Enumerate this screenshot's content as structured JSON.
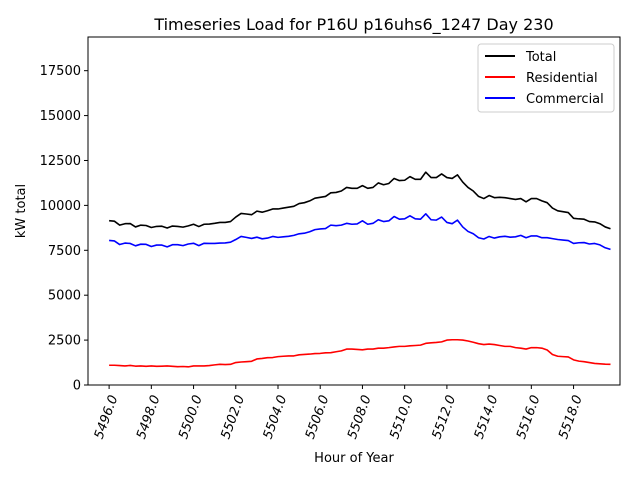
{
  "chart_data": {
    "type": "line",
    "title": "Timeseries Load for P16U p16uhs6_1247  Day 230",
    "xlabel": "Hour of Year",
    "ylabel": "kW total",
    "xlim": [
      5495.0,
      5520.2
    ],
    "ylim": [
      0,
      19375
    ],
    "xticks": [
      5496,
      5498,
      5500,
      5502,
      5504,
      5506,
      5508,
      5510,
      5512,
      5514,
      5516,
      5518
    ],
    "xtick_labels": [
      "5496.0",
      "5498.0",
      "5500.0",
      "5502.0",
      "5504.0",
      "5506.0",
      "5508.0",
      "5510.0",
      "5512.0",
      "5514.0",
      "5516.0",
      "5518.0"
    ],
    "yticks": [
      0,
      2500,
      5000,
      7500,
      10000,
      12500,
      15000,
      17500
    ],
    "ytick_labels": [
      "0",
      "2500",
      "5000",
      "7500",
      "10000",
      "12500",
      "15000",
      "17500"
    ],
    "grid": false,
    "legend_position": "top-right",
    "x": [
      5496.0,
      5496.25,
      5496.5,
      5496.75,
      5497.0,
      5497.25,
      5497.5,
      5497.75,
      5498.0,
      5498.25,
      5498.5,
      5498.75,
      5499.0,
      5499.25,
      5499.5,
      5499.75,
      5500.0,
      5500.25,
      5500.5,
      5500.75,
      5501.0,
      5501.25,
      5501.5,
      5501.75,
      5502.0,
      5502.25,
      5502.5,
      5502.75,
      5503.0,
      5503.25,
      5503.5,
      5503.75,
      5504.0,
      5504.25,
      5504.5,
      5504.75,
      5505.0,
      5505.25,
      5505.5,
      5505.75,
      5506.0,
      5506.25,
      5506.5,
      5506.75,
      5507.0,
      5507.25,
      5507.5,
      5507.75,
      5508.0,
      5508.25,
      5508.5,
      5508.75,
      5509.0,
      5509.25,
      5509.5,
      5509.75,
      5510.0,
      5510.25,
      5510.5,
      5510.75,
      5511.0,
      5511.25,
      5511.5,
      5511.75,
      5512.0,
      5512.25,
      5512.5,
      5512.75,
      5513.0,
      5513.25,
      5513.5,
      5513.75,
      5514.0,
      5514.25,
      5514.5,
      5514.75,
      5515.0,
      5515.25,
      5515.5,
      5515.75,
      5516.0,
      5516.25,
      5516.5,
      5516.75,
      5517.0,
      5517.25,
      5517.5,
      5517.75,
      5518.0,
      5518.25,
      5518.5,
      5518.75,
      5519.0,
      5519.25,
      5519.5,
      5519.75
    ],
    "series": [
      {
        "name": "Total",
        "color": "#000000",
        "values": [
          9150,
          9120,
          8900,
          8980,
          8990,
          8800,
          8900,
          8880,
          8770,
          8830,
          8840,
          8740,
          8850,
          8830,
          8790,
          8860,
          8950,
          8820,
          8950,
          8960,
          9000,
          9050,
          9050,
          9100,
          9350,
          9550,
          9520,
          9480,
          9680,
          9620,
          9700,
          9800,
          9800,
          9850,
          9900,
          9950,
          10100,
          10150,
          10250,
          10400,
          10450,
          10500,
          10700,
          10720,
          10800,
          11000,
          10950,
          10950,
          11100,
          10950,
          11000,
          11250,
          11150,
          11220,
          11500,
          11380,
          11400,
          11600,
          11450,
          11450,
          11850,
          11550,
          11550,
          11750,
          11550,
          11500,
          11700,
          11300,
          11000,
          10800,
          10500,
          10380,
          10550,
          10430,
          10450,
          10430,
          10380,
          10330,
          10380,
          10200,
          10380,
          10380,
          10250,
          10150,
          9850,
          9700,
          9650,
          9600,
          9280,
          9250,
          9230,
          9100,
          9080,
          8980,
          8800,
          8700
        ]
      },
      {
        "name": "Residential",
        "color": "#ff0000",
        "values": [
          1100,
          1100,
          1080,
          1060,
          1090,
          1050,
          1060,
          1040,
          1060,
          1040,
          1050,
          1060,
          1040,
          1020,
          1030,
          1010,
          1060,
          1060,
          1060,
          1080,
          1120,
          1150,
          1140,
          1150,
          1250,
          1280,
          1300,
          1320,
          1450,
          1480,
          1520,
          1530,
          1580,
          1600,
          1620,
          1620,
          1680,
          1700,
          1720,
          1750,
          1760,
          1790,
          1800,
          1850,
          1900,
          2000,
          2000,
          1980,
          1960,
          2000,
          2000,
          2050,
          2050,
          2080,
          2120,
          2150,
          2150,
          2180,
          2200,
          2220,
          2320,
          2350,
          2370,
          2400,
          2500,
          2520,
          2520,
          2500,
          2450,
          2380,
          2300,
          2250,
          2280,
          2250,
          2200,
          2150,
          2150,
          2080,
          2050,
          2000,
          2080,
          2080,
          2050,
          1950,
          1700,
          1600,
          1580,
          1560,
          1400,
          1330,
          1300,
          1250,
          1200,
          1180,
          1160,
          1150
        ]
      },
      {
        "name": "Commercial",
        "color": "#0000ff",
        "values": [
          8050,
          8020,
          7820,
          7900,
          7880,
          7750,
          7840,
          7830,
          7710,
          7790,
          7790,
          7690,
          7810,
          7810,
          7760,
          7850,
          7890,
          7760,
          7890,
          7880,
          7880,
          7900,
          7910,
          7950,
          8100,
          8270,
          8220,
          8160,
          8230,
          8140,
          8180,
          8270,
          8220,
          8250,
          8280,
          8330,
          8420,
          8450,
          8530,
          8650,
          8690,
          8710,
          8900,
          8870,
          8900,
          9000,
          8950,
          8970,
          9140,
          8950,
          9000,
          9200,
          9100,
          9140,
          9380,
          9230,
          9250,
          9420,
          9250,
          9230,
          9530,
          9200,
          9180,
          9350,
          9050,
          8980,
          9180,
          8800,
          8550,
          8420,
          8200,
          8130,
          8270,
          8180,
          8250,
          8280,
          8230,
          8250,
          8330,
          8200,
          8300,
          8300,
          8200,
          8200,
          8150,
          8100,
          8070,
          8040,
          7880,
          7920,
          7930,
          7850,
          7880,
          7800,
          7640,
          7550
        ]
      }
    ]
  }
}
